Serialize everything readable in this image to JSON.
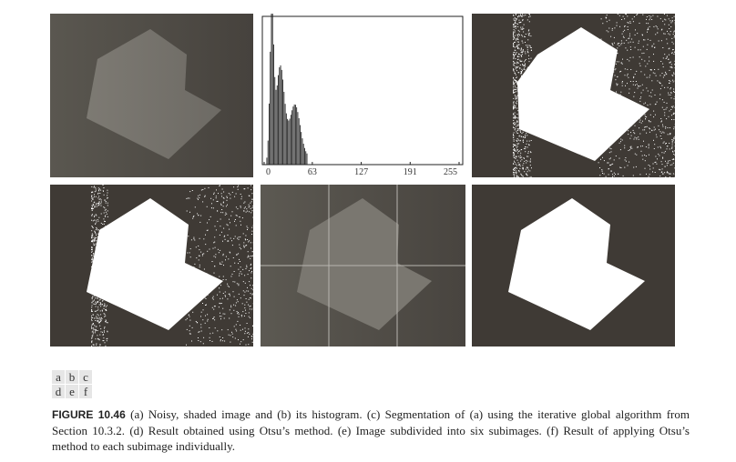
{
  "figure_number": "FIGURE 10.46",
  "caption_text": "(a) Noisy, shaded image and (b) its histogram. (c) Segmentation of (a) using the iterative global algorithm from Section 10.3.2. (d) Result obtained using Otsu’s method. (e) Image subdivided into six subimages. (f) Result of applying Otsu’s method to each subimage individually.",
  "panel_labels": [
    "a",
    "b",
    "c",
    "d",
    "e",
    "f"
  ],
  "histogram": {
    "x_ticks": [
      "0",
      "63",
      "127",
      "191",
      "255"
    ],
    "x_range": [
      0,
      255
    ]
  },
  "colors": {
    "background_dark": "#4a4540",
    "object_gray": "#75726c",
    "white": "#ffffff"
  }
}
